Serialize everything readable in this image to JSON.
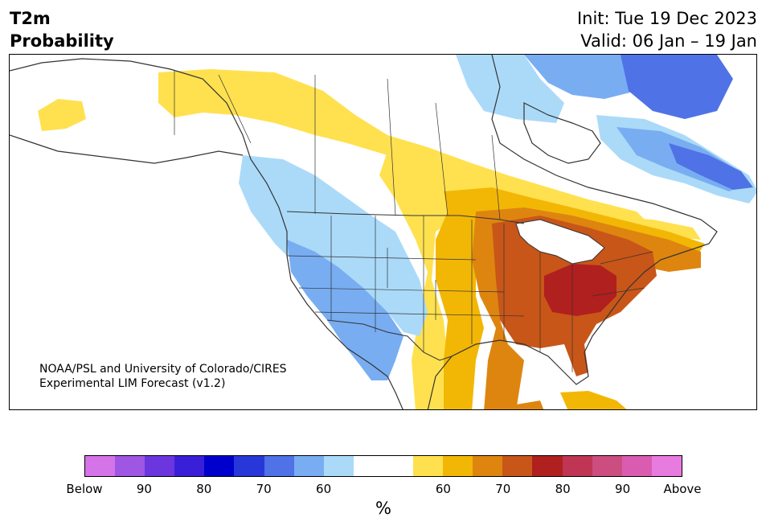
{
  "title": {
    "line1": "T2m",
    "line2": "Probability"
  },
  "forecast": {
    "init": "Init: Tue 19 Dec 2023",
    "valid": "Valid: 06 Jan – 19 Jan"
  },
  "credit": {
    "line1": "NOAA/PSL and University of Colorado/CIRES",
    "line2": "Experimental LIM Forecast (v1.2)"
  },
  "colorbar": {
    "unit": "%",
    "colors": [
      "#d573e8",
      "#9e56e3",
      "#6b36de",
      "#3a1fd8",
      "#0000cd",
      "#2838d8",
      "#4f72e7",
      "#78adf2",
      "#abdaf9",
      "#ffffff",
      "#ffffff",
      "#ffe14f",
      "#f2b705",
      "#de8510",
      "#c85618",
      "#b0201f",
      "#c03553",
      "#cc4d7f",
      "#da5cb0",
      "#e77be0"
    ],
    "tick_labels": [
      "Below",
      "90",
      "80",
      "70",
      "60",
      "60",
      "70",
      "80",
      "90",
      "Above"
    ]
  },
  "map_colors": {
    "ocean": "#ffffff",
    "land": "#ffffff",
    "border": "#333333",
    "blue_60": "#abdaf9",
    "blue_70": "#78adf2",
    "blue_80": "#4f72e7",
    "yellow_60": "#ffe14f",
    "gold_65": "#f2b705",
    "orange_70": "#de8510",
    "brown_75": "#c85618",
    "red_80": "#b0201f"
  }
}
